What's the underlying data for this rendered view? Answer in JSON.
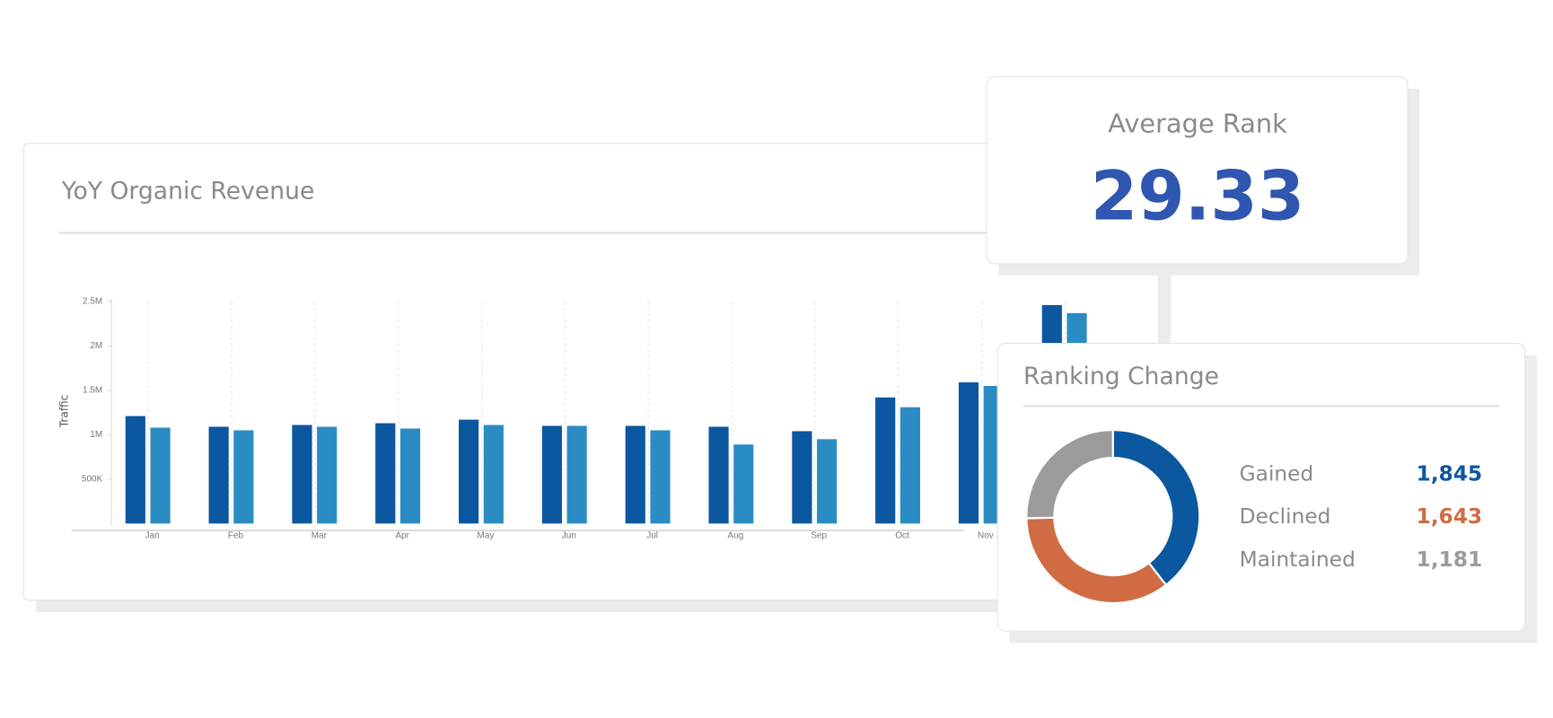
{
  "kpi": {
    "title": "Average Rank",
    "value": "29.33"
  },
  "chart_data": [
    {
      "type": "bar",
      "title": "YoY Organic Revenue",
      "y_label": "Traffic",
      "categories": [
        "Jan",
        "Feb",
        "Mar",
        "Apr",
        "May",
        "Jun",
        "Jul",
        "Aug",
        "Sep",
        "Oct",
        "Nov",
        null
      ],
      "series": [
        {
          "color": "#0b57a0",
          "values": [
            1210000,
            1090000,
            1110000,
            1130000,
            1170000,
            1100000,
            1100000,
            1090000,
            1040000,
            1420000,
            1590000,
            2460000
          ]
        },
        {
          "color": "#2b8cc4",
          "values": [
            1080000,
            1050000,
            1090000,
            1070000,
            1110000,
            1100000,
            1050000,
            890000,
            950000,
            1310000,
            1550000,
            2370000
          ]
        }
      ],
      "ylim": [
        0,
        2500000
      ],
      "yticks": [
        {
          "value": 500000,
          "label": "500K"
        },
        {
          "value": 1000000,
          "label": "1M"
        },
        {
          "value": 1500000,
          "label": "1.5M"
        },
        {
          "value": 2000000,
          "label": "2M"
        },
        {
          "value": 2500000,
          "label": "2.5M"
        }
      ]
    },
    {
      "type": "donut",
      "title": "Ranking Change",
      "categories": [
        "Gained",
        "Declined",
        "Maintained"
      ],
      "values": [
        1845,
        1643,
        1181
      ],
      "value_labels": [
        "1,845",
        "1,643",
        "1,181"
      ],
      "colors": [
        "#0b57a0",
        "#d06b43",
        "#9b9b9b"
      ]
    }
  ]
}
